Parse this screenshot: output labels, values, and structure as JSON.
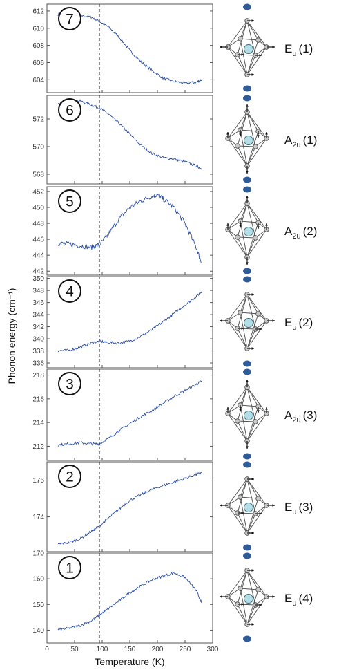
{
  "colors": {
    "line": "#2a4fa8",
    "atom_blue": "#2f5c99",
    "center_atom": "#b4dee6",
    "vertex_atom": "#c8c8c8"
  },
  "chart_data": {
    "type": "line",
    "xlabel": "Temperature (K)",
    "ylabel": "Phonon energy (cm⁻¹)",
    "xlim": [
      0,
      300
    ],
    "xticks": [
      "0",
      "50",
      "100",
      "150",
      "200",
      "250",
      "300"
    ],
    "transition_line_x": 95,
    "panels": [
      {
        "number": "7",
        "mode": "E",
        "mode_sub": "u",
        "mode_index": "(1)",
        "ylim": [
          602.5,
          612.8
        ],
        "yticks": [
          604,
          606,
          608,
          610,
          612
        ],
        "series": {
          "x": [
            20,
            40,
            60,
            80,
            95,
            110,
            130,
            150,
            170,
            190,
            210,
            230,
            250,
            270,
            280
          ],
          "y": [
            611.6,
            611.7,
            611.5,
            611.3,
            610.8,
            610.2,
            609.0,
            607.4,
            606.1,
            605.1,
            604.2,
            603.8,
            603.6,
            603.7,
            604.0
          ]
        }
      },
      {
        "number": "6",
        "mode": "A",
        "mode_sub": "2u",
        "mode_index": "(1)",
        "ylim": [
          567.3,
          573.7
        ],
        "yticks": [
          568,
          570,
          572
        ],
        "series": {
          "x": [
            20,
            40,
            60,
            80,
            95,
            110,
            130,
            150,
            170,
            190,
            210,
            230,
            250,
            270,
            280
          ],
          "y": [
            573.1,
            573.2,
            573.3,
            573.0,
            572.8,
            572.4,
            571.7,
            570.9,
            570.1,
            569.5,
            569.2,
            569.1,
            568.9,
            568.6,
            568.4
          ]
        }
      },
      {
        "number": "5",
        "mode": "A",
        "mode_sub": "2u",
        "mode_index": "(2)",
        "ylim": [
          441.5,
          452.6
        ],
        "yticks": [
          442,
          444,
          446,
          448,
          450,
          452
        ],
        "series": {
          "x": [
            20,
            40,
            60,
            80,
            95,
            110,
            130,
            150,
            170,
            190,
            200,
            210,
            230,
            250,
            270,
            280
          ],
          "y": [
            445.5,
            445.4,
            445.2,
            445.0,
            445.3,
            446.5,
            448.5,
            450.0,
            450.8,
            451.4,
            451.6,
            451.1,
            450.0,
            448.0,
            445.0,
            443.0
          ]
        }
      },
      {
        "number": "4",
        "mode": "E",
        "mode_sub": "u",
        "mode_index": "(2)",
        "ylim": [
          335.2,
          350.3
        ],
        "yticks": [
          336,
          338,
          340,
          342,
          344,
          346,
          348,
          350
        ],
        "series": {
          "x": [
            20,
            40,
            60,
            80,
            95,
            110,
            130,
            150,
            170,
            190,
            210,
            230,
            250,
            270,
            280
          ],
          "y": [
            338.0,
            338.1,
            338.6,
            339.3,
            339.6,
            339.4,
            339.3,
            339.6,
            340.4,
            341.5,
            342.8,
            344.2,
            345.6,
            347.0,
            347.8
          ]
        }
      },
      {
        "number": "3",
        "mode": "A",
        "mode_sub": "2u",
        "mode_index": "(3)",
        "ylim": [
          210.8,
          218.5
        ],
        "yticks": [
          212,
          214,
          216,
          218
        ],
        "series": {
          "x": [
            20,
            40,
            60,
            80,
            95,
            110,
            130,
            150,
            170,
            190,
            210,
            230,
            250,
            270,
            280
          ],
          "y": [
            212.1,
            212.2,
            212.3,
            212.2,
            212.2,
            212.6,
            213.3,
            213.9,
            214.5,
            215.0,
            215.6,
            216.2,
            216.7,
            217.2,
            217.5
          ]
        }
      },
      {
        "number": "2",
        "mode": "E",
        "mode_sub": "u",
        "mode_index": "(3)",
        "ylim": [
          172.1,
          177.0
        ],
        "yticks": [
          174,
          176
        ],
        "series": {
          "x": [
            20,
            40,
            60,
            80,
            95,
            110,
            130,
            150,
            170,
            190,
            210,
            230,
            250,
            270,
            280
          ],
          "y": [
            172.5,
            172.6,
            172.8,
            173.2,
            173.5,
            173.9,
            174.4,
            174.9,
            175.2,
            175.5,
            175.7,
            175.9,
            176.1,
            176.3,
            176.4
          ]
        }
      },
      {
        "number": "1",
        "mode": "E",
        "mode_sub": "u",
        "mode_index": "(4)",
        "ylim": [
          135,
          170
        ],
        "yticks": [
          140,
          150,
          160,
          170
        ],
        "series": {
          "x": [
            20,
            40,
            60,
            80,
            95,
            110,
            130,
            150,
            170,
            190,
            210,
            230,
            250,
            270,
            280
          ],
          "y": [
            140.2,
            140.7,
            141.8,
            143.6,
            145.8,
            148.2,
            151.3,
            154.6,
            157.2,
            159.6,
            161.0,
            162.3,
            160.5,
            155.5,
            150.6
          ]
        }
      }
    ]
  }
}
